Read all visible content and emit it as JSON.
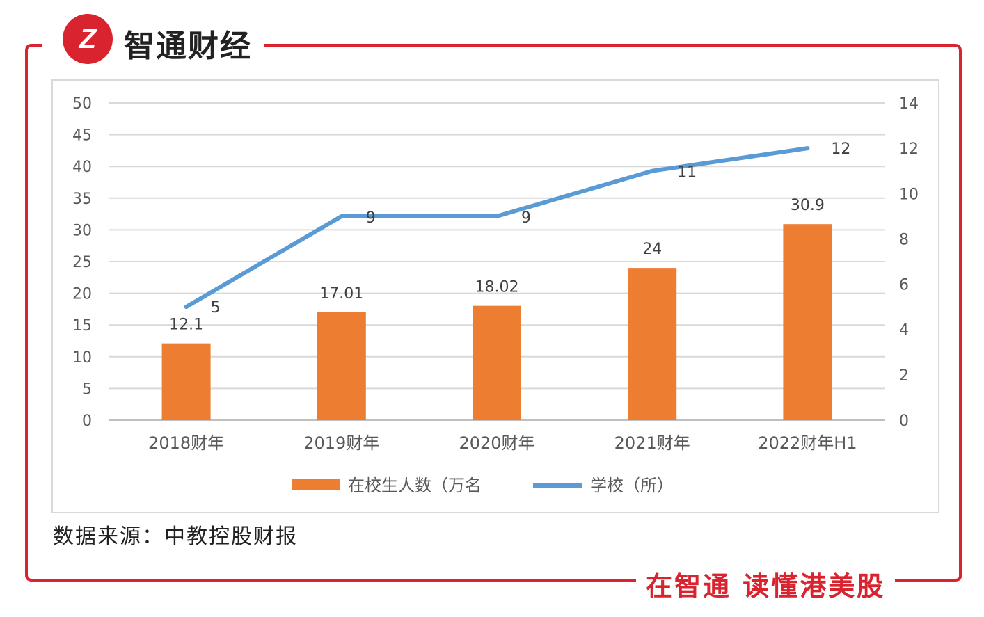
{
  "brand": {
    "logo_mark": "Z",
    "name": "智通财经",
    "slogan": "在智通  读懂港美股"
  },
  "source_note": "数据来源：中教控股财报",
  "chart_data": {
    "type": "bar+line",
    "categories": [
      "2018财年",
      "2019财年",
      "2020财年",
      "2021财年",
      "2022财年H1"
    ],
    "series": [
      {
        "name": "在校生人数（万名",
        "kind": "bar",
        "axis": "left",
        "color": "#ED7D31",
        "values": [
          12.1,
          17.01,
          18.02,
          24,
          30.9
        ],
        "labels": [
          "12.1",
          "17.01",
          "18.02",
          "24",
          "30.9"
        ]
      },
      {
        "name": "学校（所）",
        "kind": "line",
        "axis": "right",
        "color": "#5B9BD5",
        "values": [
          5,
          9,
          9,
          11,
          12
        ],
        "labels": [
          "5",
          "9",
          "9",
          "11",
          "12"
        ]
      }
    ],
    "y_left": {
      "min": 0,
      "max": 50,
      "ticks": [
        0,
        5,
        10,
        15,
        20,
        25,
        30,
        35,
        40,
        45,
        50
      ]
    },
    "y_right": {
      "min": 0,
      "max": 14,
      "ticks": [
        0,
        2,
        4,
        6,
        8,
        10,
        12,
        14
      ]
    },
    "legend": "bottom",
    "grid": true
  }
}
